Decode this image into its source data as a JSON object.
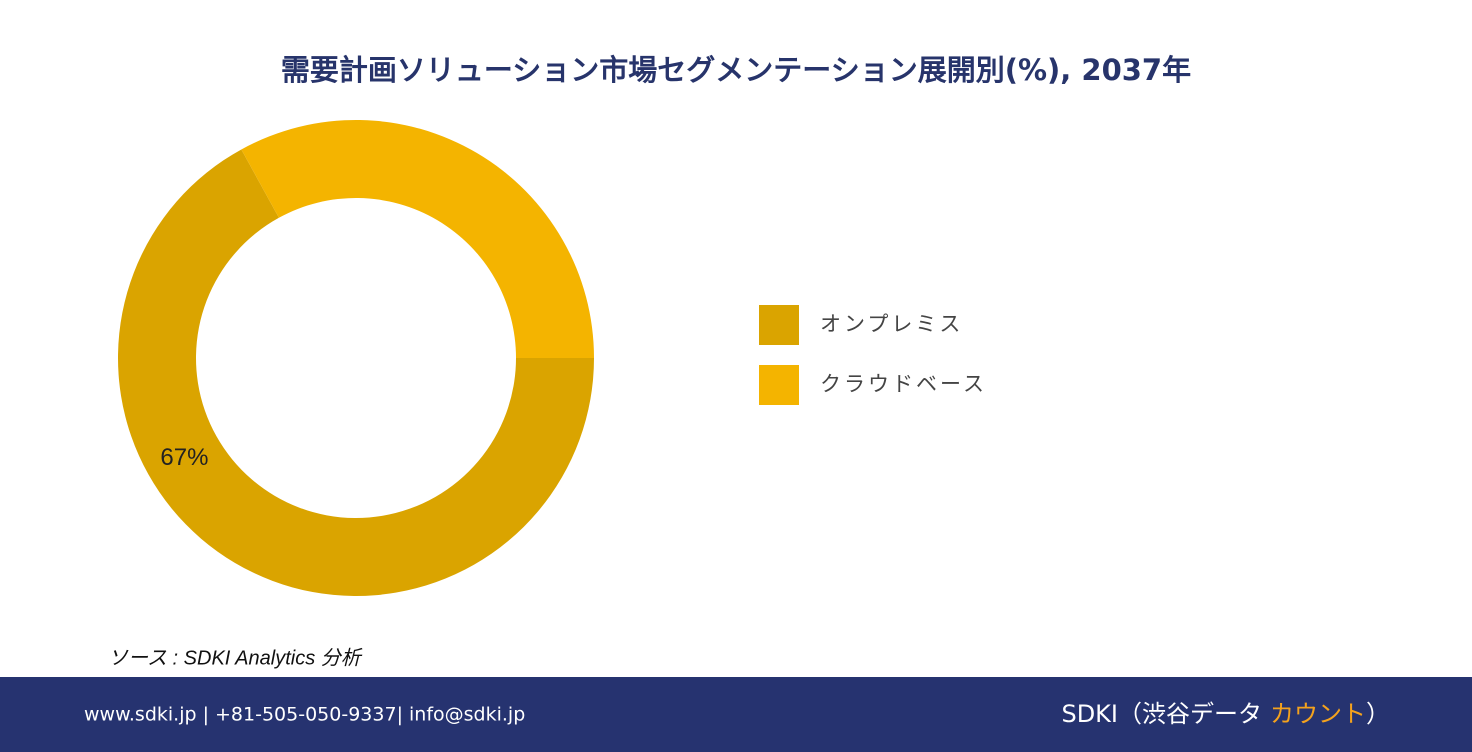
{
  "chart_data": {
    "type": "donut",
    "title": "需要計画ソリューション市場セグメンテーション展開別(%), 2037年",
    "categories": [
      "オンプレミス",
      "クラウドベース"
    ],
    "values": [
      67,
      33
    ],
    "value_labels": [
      "67%",
      null
    ],
    "colors": [
      "#DAA400",
      "#F4B400"
    ],
    "legend": "right"
  },
  "source": "ソース : SDKI Analytics 分析",
  "footer": {
    "contact": "www.sdki.jp | +81-505-050-9337| info@sdki.jp",
    "brand": "SDKI（渋谷データ",
    "brand_highlight": "カウント",
    "brand_end": "）"
  }
}
